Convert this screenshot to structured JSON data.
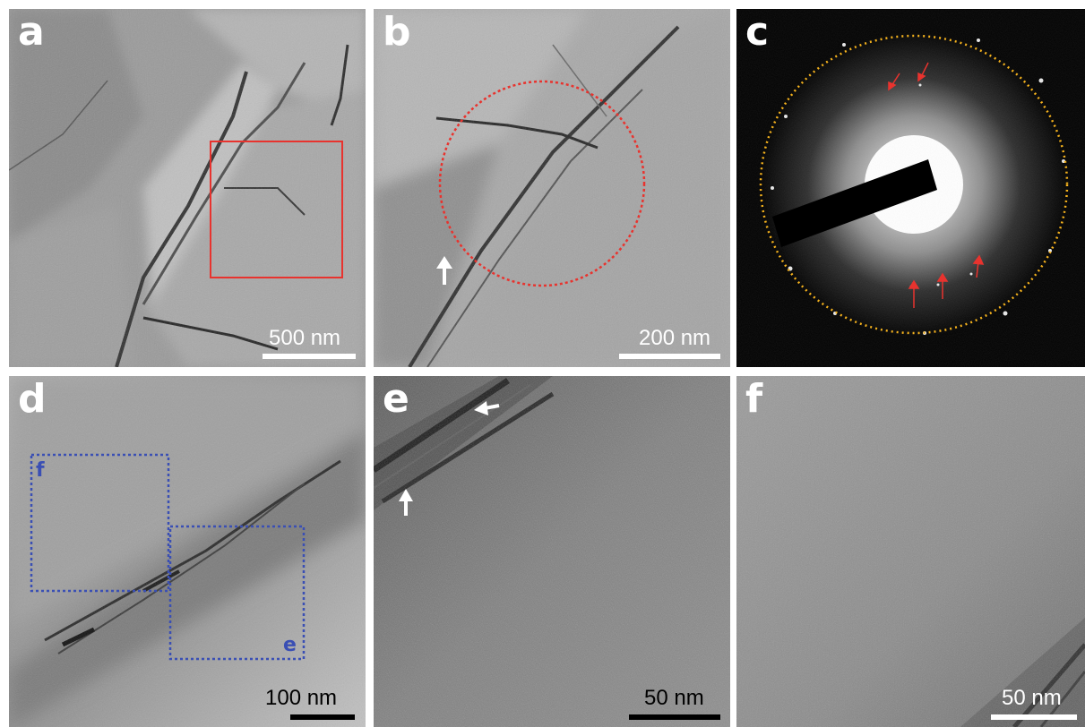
{
  "colors": {
    "red_box": "#e8332e",
    "red_circle": "#e8332e",
    "yellow_ring": "#f5b21d",
    "blue_box": "#3a4fb4",
    "arrow_white": "#ffffff",
    "arrow_red": "#e8332e"
  },
  "panels": {
    "a": {
      "label": "a",
      "scale": "500 nm"
    },
    "b": {
      "label": "b",
      "scale": "200 nm"
    },
    "c": {
      "label": "c"
    },
    "d": {
      "label": "d",
      "scale": "100 nm",
      "box_f_label": "f",
      "box_e_label": "e"
    },
    "e": {
      "label": "e",
      "scale": "50 nm"
    },
    "f": {
      "label": "f",
      "scale": "50 nm"
    }
  }
}
